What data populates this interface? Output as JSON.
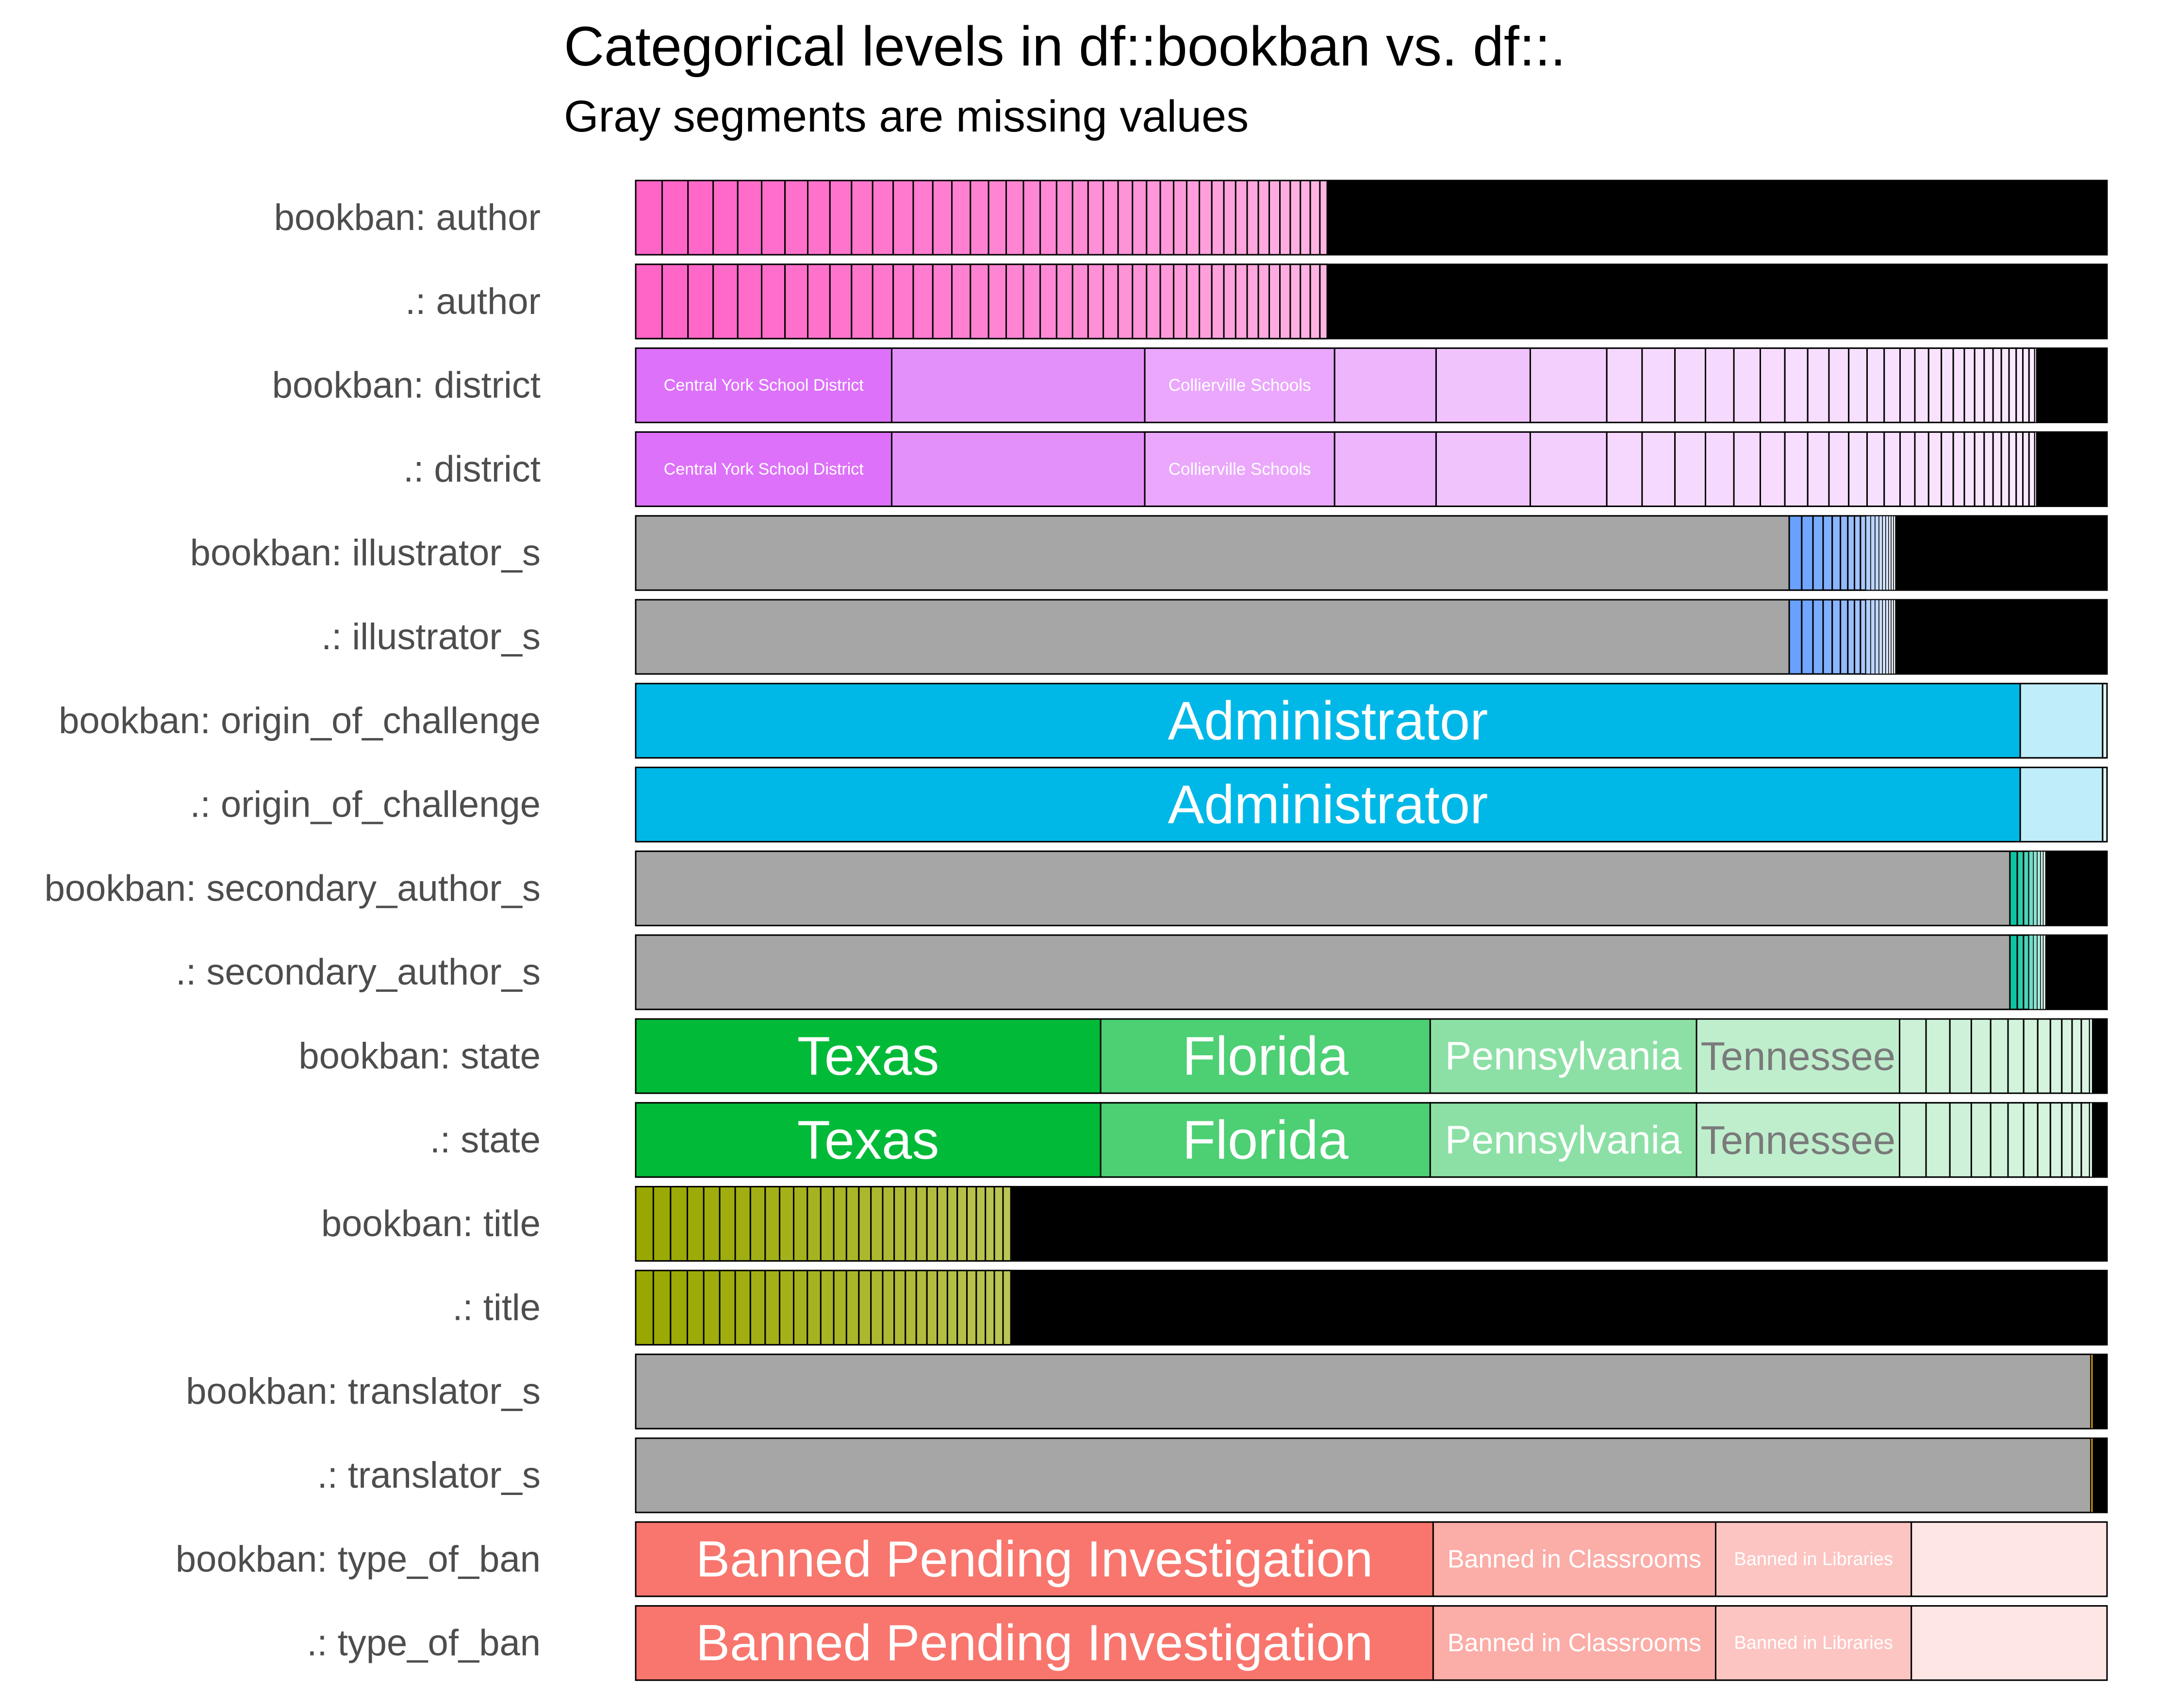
{
  "chart_data": {
    "type": "bar",
    "orientation": "horizontal-stacked-proportional",
    "title": "Categorical levels in df::bookban vs. df::.",
    "subtitle": "Gray segments are missing values",
    "missing_color": "#a6a6a6",
    "other_color": "#000000",
    "rows": [
      {
        "label": "bookban: author",
        "variable": "author",
        "hue": "#ff64c7",
        "pattern": {
          "kind": "taper",
          "levels": 60,
          "first": 0.018,
          "decay": 0.975,
          "end": 0.47
        }
      },
      {
        "label": ".: author",
        "variable": "author",
        "hue": "#ff64c7",
        "pattern": {
          "kind": "taper",
          "levels": 60,
          "first": 0.018,
          "decay": 0.975,
          "end": 0.47
        }
      },
      {
        "label": "bookban: district",
        "variable": "district",
        "hue": "#dd71fa",
        "segments": [
          {
            "label": "Central York School District",
            "share": 0.174,
            "alpha": 1.0
          },
          {
            "label": "",
            "share": 0.172,
            "alpha": 0.78
          },
          {
            "label": "Collierville Schools",
            "share": 0.129,
            "alpha": 0.62
          },
          {
            "label": "",
            "share": 0.069,
            "alpha": 0.52
          },
          {
            "label": "",
            "share": 0.064,
            "alpha": 0.42
          },
          {
            "label": "",
            "share": 0.052,
            "alpha": 0.34
          }
        ],
        "tail": {
          "kind": "taper",
          "levels": 40,
          "first": 0.024,
          "decay": 0.93,
          "end": 0.952
        }
      },
      {
        "label": ".: district",
        "variable": "district",
        "hue": "#dd71fa",
        "segments": [
          {
            "label": "Central York School District",
            "share": 0.174,
            "alpha": 1.0
          },
          {
            "label": "",
            "share": 0.172,
            "alpha": 0.78
          },
          {
            "label": "Collierville Schools",
            "share": 0.129,
            "alpha": 0.62
          },
          {
            "label": "",
            "share": 0.069,
            "alpha": 0.52
          },
          {
            "label": "",
            "share": 0.064,
            "alpha": 0.42
          },
          {
            "label": "",
            "share": 0.052,
            "alpha": 0.34
          }
        ],
        "tail": {
          "kind": "taper",
          "levels": 40,
          "first": 0.024,
          "decay": 0.93,
          "end": 0.952
        }
      },
      {
        "label": "bookban: illustrator_s",
        "variable": "illustrator_s",
        "hue": "#619cff",
        "missing": 0.784,
        "tail": {
          "kind": "taper",
          "levels": 18,
          "first": 0.0085,
          "decay": 0.9,
          "end": 0.867
        }
      },
      {
        "label": ".: illustrator_s",
        "variable": "illustrator_s",
        "hue": "#619cff",
        "missing": 0.784,
        "tail": {
          "kind": "taper",
          "levels": 18,
          "first": 0.0085,
          "decay": 0.9,
          "end": 0.867
        }
      },
      {
        "label": "bookban: origin_of_challenge",
        "variable": "origin_of_challenge",
        "hue": "#00b8e7",
        "segments": [
          {
            "label": "Administrator",
            "share": 0.941,
            "alpha": 1.0
          },
          {
            "label": "",
            "share": 0.056,
            "alpha": 0.25
          },
          {
            "label": "",
            "share": 0.003,
            "alpha": 0.12
          }
        ]
      },
      {
        "label": ".: origin_of_challenge",
        "variable": "origin_of_challenge",
        "hue": "#00b8e7",
        "segments": [
          {
            "label": "Administrator",
            "share": 0.941,
            "alpha": 1.0
          },
          {
            "label": "",
            "share": 0.056,
            "alpha": 0.25
          },
          {
            "label": "",
            "share": 0.003,
            "alpha": 0.12
          }
        ]
      },
      {
        "label": "bookban: secondary_author_s",
        "variable": "secondary_author_s",
        "hue": "#00c19c",
        "missing": 0.934,
        "tail": {
          "kind": "taper",
          "levels": 8,
          "first": 0.005,
          "decay": 0.85,
          "end": 0.96
        }
      },
      {
        "label": ".: secondary_author_s",
        "variable": "secondary_author_s",
        "hue": "#00c19c",
        "missing": 0.934,
        "tail": {
          "kind": "taper",
          "levels": 8,
          "first": 0.005,
          "decay": 0.85,
          "end": 0.96
        }
      },
      {
        "label": "bookban: state",
        "variable": "state",
        "hue": "#00ba38",
        "segments": [
          {
            "label": "Texas",
            "share": 0.316,
            "alpha": 1.0
          },
          {
            "label": "Florida",
            "share": 0.224,
            "alpha": 0.7
          },
          {
            "label": "Pennsylvania",
            "share": 0.181,
            "alpha": 0.45
          },
          {
            "label": "Tennessee",
            "share": 0.138,
            "alpha": 0.25
          }
        ],
        "tail": {
          "kind": "taper",
          "levels": 26,
          "first": 0.018,
          "decay": 0.9,
          "end": 0.99
        }
      },
      {
        "label": ".: state",
        "variable": "state",
        "hue": "#00ba38",
        "segments": [
          {
            "label": "Texas",
            "share": 0.316,
            "alpha": 1.0
          },
          {
            "label": "Florida",
            "share": 0.224,
            "alpha": 0.7
          },
          {
            "label": "Pennsylvania",
            "share": 0.181,
            "alpha": 0.45
          },
          {
            "label": "Tennessee",
            "share": 0.138,
            "alpha": 0.25
          }
        ],
        "tail": {
          "kind": "taper",
          "levels": 26,
          "first": 0.018,
          "decay": 0.9,
          "end": 0.99
        }
      },
      {
        "label": "bookban: title",
        "variable": "title",
        "hue": "#99a800",
        "pattern": {
          "kind": "taper",
          "levels": 65,
          "first": 0.012,
          "decay": 0.975,
          "end": 0.255
        }
      },
      {
        "label": ".: title",
        "variable": "title",
        "hue": "#99a800",
        "pattern": {
          "kind": "taper",
          "levels": 65,
          "first": 0.012,
          "decay": 0.975,
          "end": 0.255
        }
      },
      {
        "label": "bookban: translator_s",
        "variable": "translator_s",
        "hue": "#d39200",
        "missing": 0.989,
        "tail": {
          "kind": "taper",
          "levels": 1,
          "first": 0.0015,
          "decay": 1.0,
          "end": 0.9905
        }
      },
      {
        "label": ".: translator_s",
        "variable": "translator_s",
        "hue": "#d39200",
        "missing": 0.989,
        "tail": {
          "kind": "taper",
          "levels": 1,
          "first": 0.0015,
          "decay": 1.0,
          "end": 0.9905
        }
      },
      {
        "label": "bookban: type_of_ban",
        "variable": "type_of_ban",
        "hue": "#f8766d",
        "segments": [
          {
            "label": "Banned Pending Investigation",
            "share": 0.542,
            "alpha": 1.0
          },
          {
            "label": "Banned in Classrooms",
            "share": 0.192,
            "alpha": 0.6
          },
          {
            "label": "Banned in Libraries",
            "share": 0.133,
            "alpha": 0.42
          },
          {
            "label": "",
            "share": 0.133,
            "alpha": 0.18
          }
        ]
      },
      {
        "label": ".: type_of_ban",
        "variable": "type_of_ban",
        "hue": "#f8766d",
        "segments": [
          {
            "label": "Banned Pending Investigation",
            "share": 0.542,
            "alpha": 1.0
          },
          {
            "label": "Banned in Classrooms",
            "share": 0.192,
            "alpha": 0.6
          },
          {
            "label": "Banned in Libraries",
            "share": 0.133,
            "alpha": 0.42
          },
          {
            "label": "",
            "share": 0.133,
            "alpha": 0.18
          }
        ]
      }
    ],
    "xlim": [
      0,
      1
    ],
    "grid": false,
    "legend": "none"
  }
}
